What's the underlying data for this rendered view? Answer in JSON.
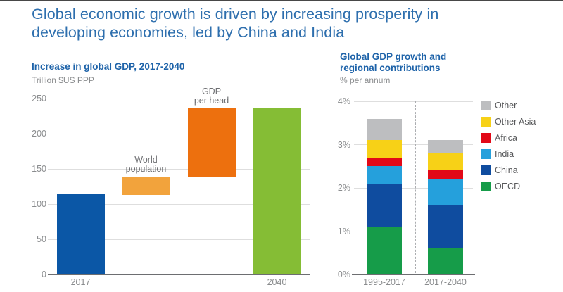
{
  "page": {
    "title": "Global economic growth is driven by increasing prosperity in developing economies, led by China and India",
    "title_lines": [
      "Global economic growth is driven by increasing prosperity in",
      "developing economies, led by China and India"
    ]
  },
  "colors": {
    "title_blue": "#2E6FAE",
    "subtitle_blue": "#1E63A9",
    "axis_text_gray": "#8A8C8E",
    "annotation_gray": "#6D6E71",
    "legend_text_gray": "#58595B",
    "gridline_gray": "#DEDEDE",
    "axis_line_gray": "#6D6E71"
  },
  "chart_data": [
    {
      "type": "bar",
      "subtype": "waterfall",
      "title": "Increase in global GDP, 2017-2040",
      "unit_label": "Trillion $US PPP",
      "ylim": [
        0,
        250
      ],
      "grid": true,
      "y_ticks": [
        {
          "label": "250",
          "value": 250
        },
        {
          "label": "200",
          "value": 200
        },
        {
          "label": "150",
          "value": 150
        },
        {
          "label": "100",
          "value": 100
        },
        {
          "label": "50",
          "value": 50
        },
        {
          "label": "0",
          "value": 0
        }
      ],
      "bars": [
        {
          "name": "2017",
          "start": 0,
          "end": 114,
          "color": "#0B57A6",
          "axis_label": "2017"
        },
        {
          "name": "World population",
          "start": 113,
          "end": 139,
          "color": "#F2A33C",
          "annotation_lines": [
            "World",
            "population"
          ]
        },
        {
          "name": "GDP per head",
          "start": 139,
          "end": 236,
          "color": "#ED700E",
          "annotation_lines": [
            "GDP",
            "per head"
          ]
        },
        {
          "name": "2040",
          "start": 0,
          "end": 236,
          "color": "#85BD35",
          "axis_label": "2040"
        }
      ]
    },
    {
      "type": "bar",
      "subtype": "stacked",
      "title": "Global GDP growth and regional contributions",
      "title_lines": [
        "Global GDP growth and",
        "regional contributions"
      ],
      "unit_label": "% per annum",
      "ylim": [
        0,
        4
      ],
      "grid": true,
      "y_ticks": [
        {
          "label": "4%",
          "value": 4
        },
        {
          "label": "3%",
          "value": 3
        },
        {
          "label": "2%",
          "value": 2
        },
        {
          "label": "1%",
          "value": 1
        },
        {
          "label": "0%",
          "value": 0
        }
      ],
      "categories": [
        "1995-2017",
        "2017-2040"
      ],
      "series_bottom_to_top": [
        {
          "name": "OECD",
          "color": "#169C49",
          "values": [
            1.1,
            0.6
          ]
        },
        {
          "name": "China",
          "color": "#0F4C9F",
          "values": [
            1.0,
            1.0
          ]
        },
        {
          "name": "India",
          "color": "#25A0DC",
          "values": [
            0.4,
            0.6
          ]
        },
        {
          "name": "Africa",
          "color": "#E20917",
          "values": [
            0.2,
            0.2
          ]
        },
        {
          "name": "Other Asia",
          "color": "#F7D117",
          "values": [
            0.4,
            0.4
          ]
        },
        {
          "name": "Other",
          "color": "#BDBEC0",
          "values": [
            0.5,
            0.3
          ]
        }
      ],
      "totals": [
        3.6,
        3.1
      ],
      "legend_position": "right",
      "legend_order": [
        "Other",
        "Other Asia",
        "Africa",
        "India",
        "China",
        "OECD"
      ],
      "divider": {
        "style": "dashed-vertical",
        "between": [
          "1995-2017",
          "2017-2040"
        ]
      }
    }
  ]
}
